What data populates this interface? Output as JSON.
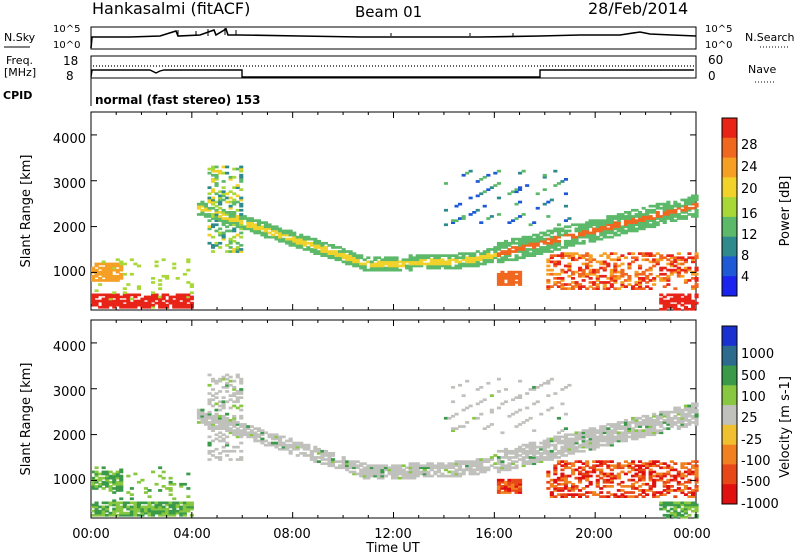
{
  "header": {
    "station": "Hankasalmi (fitACF)",
    "beam": "Beam 01",
    "date": "28/Feb/2014"
  },
  "noise_panel": {
    "left_label": "N.Sky",
    "right_label": "N.Search",
    "left_ticks": [
      "10^5",
      "10^0"
    ],
    "right_ticks": [
      "10^5",
      "10^0"
    ]
  },
  "freq_panel": {
    "left_label_1": "Freq.",
    "left_label_2": "[MHz]",
    "left_ticks": [
      "18",
      "8"
    ],
    "right_label": "Nave",
    "right_ticks": [
      "60",
      "0"
    ]
  },
  "cpid_panel": {
    "label": "CPID",
    "program_text": "normal (fast stereo) 153"
  },
  "chart_data": [
    {
      "type": "heatmap",
      "title": "Power",
      "ylabel": "Slant Range [km]",
      "xlabel": "Time UT",
      "yticks": [
        "1000",
        "2000",
        "3000",
        "4000"
      ],
      "ylim": [
        180,
        4500
      ],
      "xticks": [
        "00:00",
        "04:00",
        "08:00",
        "12:00",
        "16:00",
        "20:00",
        "00:00"
      ],
      "colorbar": {
        "label": "Power [dB]",
        "ticks": [
          "4",
          "8",
          "12",
          "16",
          "20",
          "24",
          "28"
        ],
        "range": [
          0,
          30
        ],
        "colors": [
          "#1a24ee",
          "#1e5ad6",
          "#2f8a8e",
          "#5db96a",
          "#a8d838",
          "#f0d22a",
          "#f5a024",
          "#f06820",
          "#e82418"
        ]
      },
      "regions": [
        {
          "name": "ground-scatter-band",
          "t_start": 4.2,
          "t_end": 24.0,
          "range_start_km": 2400,
          "range_mid_km": 1150,
          "range_end_km": 2450,
          "dominant_level": "high"
        },
        {
          "name": "near-range-early",
          "t_start": 0.0,
          "t_end": 4.0,
          "range_min_km": 200,
          "range_max_km": 1300,
          "dominant_level": "high"
        },
        {
          "name": "evening-f-region",
          "t_start": 18.0,
          "t_end": 24.0,
          "range_min_km": 600,
          "range_max_km": 1400,
          "dominant_level": "high"
        },
        {
          "name": "afternoon-patch",
          "t_start": 16.0,
          "t_end": 17.0,
          "range_min_km": 700,
          "range_max_km": 1000,
          "dominant_level": "high"
        },
        {
          "name": "far-range-echoes",
          "t_start": 4.5,
          "t_end": 6.0,
          "range_min_km": 2500,
          "range_max_km": 3300,
          "dominant_level": "medium"
        }
      ]
    },
    {
      "type": "heatmap",
      "title": "Velocity",
      "ylabel": "Slant Range [km]",
      "xlabel": "Time UT",
      "yticks": [
        "1000",
        "2000",
        "3000",
        "4000"
      ],
      "ylim": [
        180,
        4500
      ],
      "xticks": [
        "00:00",
        "04:00",
        "08:00",
        "12:00",
        "16:00",
        "20:00",
        "00:00"
      ],
      "colorbar": {
        "label": "Velocity [m s-1]",
        "ticks": [
          "1000",
          "500",
          "100",
          "25",
          "-25",
          "-100",
          "-500",
          "-1000"
        ],
        "colors": [
          "#1a30d0",
          "#2c6a8e",
          "#3a9a4a",
          "#88c840",
          "#c0c0bc",
          "#f0c030",
          "#f08020",
          "#e84818",
          "#e01010"
        ]
      },
      "regions": [
        {
          "name": "ground-scatter-band",
          "t_start": 4.2,
          "t_end": 24.0,
          "range_start_km": 2400,
          "range_mid_km": 1150,
          "range_end_km": 2450,
          "dominant_level": "ground scatter (grey)"
        },
        {
          "name": "near-range-early",
          "t_start": 0.0,
          "t_end": 4.0,
          "range_min_km": 200,
          "range_max_km": 1300,
          "dominant_level": "positive"
        },
        {
          "name": "evening-f-region",
          "t_start": 18.0,
          "t_end": 24.0,
          "range_min_km": 600,
          "range_max_km": 1400,
          "dominant_level": "negative"
        },
        {
          "name": "afternoon-patch",
          "t_start": 16.0,
          "t_end": 17.0,
          "range_min_km": 700,
          "range_max_km": 1000,
          "dominant_level": "negative"
        }
      ]
    }
  ],
  "colors": {
    "ground_scatter": "#c0c0bc"
  }
}
